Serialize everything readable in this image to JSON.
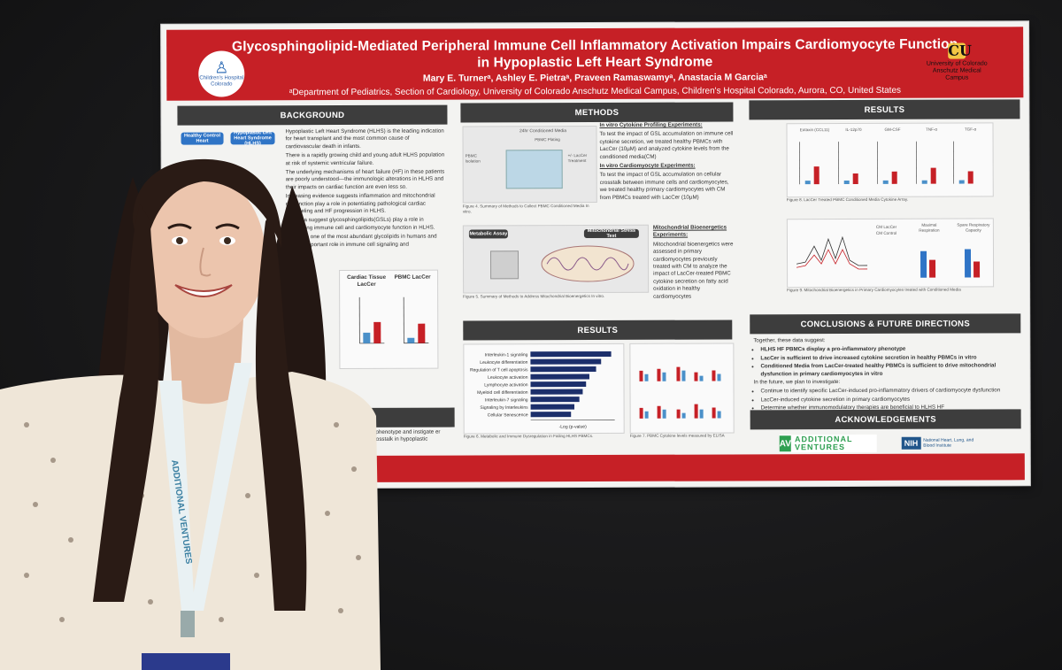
{
  "poster": {
    "title_line1": "Glycosphingolipid-Mediated Peripheral Immune Cell Inflammatory Activation Impairs Cardiomyocyte Function",
    "title_line2": "in Hypoplastic Left Heart Syndrome",
    "authors": "Mary E. Turnerᵃ, Ashley E. Pietraᵃ, Praveen Ramaswamyᵃ, Anastacia M Garciaᵃ",
    "affiliation": "ᵃDepartment of Pediatrics, Section of Cardiology, University of Colorado Anschutz Medical Campus, Children's Hospital Colorado, Aurora, CO, United States",
    "logo_left_text": "Children's Hospital Colorado",
    "logo_right_text": "University of Colorado Anschutz Medical Campus",
    "logo_right_mark": "CU",
    "sections": {
      "background": "BACKGROUND",
      "methods": "METHODS",
      "results": "RESULTS",
      "results2": "RESULTS",
      "conclusions": "CONCLUSIONS & FUTURE DIRECTIONS",
      "acknowledgements": "ACKNOWLEDGEMENTS"
    },
    "background": {
      "pill_healthy": "Healthy Control Heart",
      "pill_hlhs": "Hypoplastic Left Heart Syndrome (HLHS)",
      "bullets": [
        "Hypoplastic Left Heart Syndrome (HLHS) is the leading indication for heart transplant and the most common cause of cardiovascular death in infants.",
        "There is a rapidly growing child and young adult HLHS population at risk of systemic ventricular failure.",
        "The underlying mechanisms of heart failure (HF) in these patients are poorly understood—the immunologic alterations in HLHS and their impacts on cardiac function are even less so.",
        "Increasing evidence suggests inflammation and mitochondrial dysfunction play a role in potentiating pathological cardiac remodeling and HF progression in HLHS.",
        "Our data suggest glycosphingolipids(GSLs) play a role in modulating immune cell and cardiomyocyte function in HLHS.",
        "GSLs are one of the most abundant glycolipids in humans and play an important role in immune cell signaling and"
      ],
      "fig_label_1": "Cardiac Tissue LacCer",
      "fig_label_2": "PBMC LacCer",
      "tail": "y phenotype and instigate er crosstalk in hypoplastic"
    },
    "methods": {
      "fig1_title": "24hr Conditioned Media",
      "fig1_sub": "PBMC Plating",
      "fig1_left": "PBMC Isolation",
      "fig1_right": "+/- LacCer Treatment",
      "cyto_head": "In vitro Cytokine Profiling Experiments:",
      "cyto_text": "To test the impact of GSL accumulation on immune cell cytokine secretion, we treated healthy PBMCs with LacCer (10µM) and analyzed cytokine levels from the conditioned media(CM)",
      "cardio_head": "In vitro Cardiomyocyte Experiments:",
      "cardio_text": "To test the impact of GSL accumulation on cellular crosstalk between immune cells and cardiomyocytes, we treated healthy primary cardiomyocytes with CM from PBMCs treated with LacCer (10µM)",
      "fig_cap1": "Figure 4. Summary of Methods to Collect PBMC Conditioned Media In vitro.",
      "metab_label": "Metabolic Assay",
      "mito_label": "Mitochondrial Stress Test",
      "mito_head": "Mitochondrial Bioenergetics Experiments:",
      "mito_text": "Mitochondrial bioenergetics were assessed in primary cardiomyocytes previously treated with CM to analyze the impact of LacCer-treated PBMC cytokine secretion on fatty acid oxidation in healthy cardiomyocytes",
      "fig_cap2": "Figure 5. Summary of Methods to Address Mitochondrial Bioenergetics In vitro."
    },
    "results_mid": {
      "pathways": [
        {
          "label": "Interleukin-1 signaling",
          "value": 4.8
        },
        {
          "label": "Leukocyte differentiation",
          "value": 4.2
        },
        {
          "label": "Regulation of T cell apoptosis",
          "value": 3.9
        },
        {
          "label": "Leukocyte activation",
          "value": 3.5
        },
        {
          "label": "Lymphocyte activation",
          "value": 3.3
        },
        {
          "label": "Myeloid cell differentiation",
          "value": 3.1
        },
        {
          "label": "Interleukin-7 signaling",
          "value": 2.9
        },
        {
          "label": "Signaling by Interleukins",
          "value": 2.6
        },
        {
          "label": "Cellular Senescence",
          "value": 2.4
        }
      ],
      "axis_label": "-Log (p-value)",
      "fig_cap6": "Figure 6. Metabolic and Immune Dysregulation in Failing HLHS PBMCs.",
      "fig_cap7": "Figure 7. PBMC Cytokine levels measured by ELISA"
    },
    "results_right": {
      "cytokines": [
        "Eotaxin (CCL11)",
        "IL-12p70",
        "GM-CSF",
        "TNF-α",
        "TGF-α"
      ],
      "fig_cap8": "Figure 8. LacCer Treated PBMC Conditioned Media Cytokine Array.",
      "legend_items": [
        "CM LacCer",
        "CM Control"
      ],
      "bar_titles": [
        "Maximal Respiration",
        "Spare Respiratory Capacity"
      ],
      "fig_cap9": "Figure 9. Mitochondrial Bioenergetics in Primary Cardiomyocytes treated with Conditioned Media"
    },
    "conclusions": {
      "intro": "Together, these data suggest:",
      "points": [
        "HLHS HF PBMCs display a pro-inflammatory phenotype",
        "LacCer is sufficient to drive increased cytokine secretion in healthy PBMCs in vitro",
        "Conditioned Media from LacCer-treated healthy PBMCs is sufficient to drive mitochondrial dysfunction in primary cardiomyocytes in vitro"
      ],
      "future_intro": "In the future, we plan to investigate:",
      "future": [
        "Continue to identify specific LacCer-induced pro-inflammatory drivers of cardiomyocyte dysfunction",
        "LacCer-induced cytokine secretion in primary cardiomyocytes",
        "Determine whether immunomodulatory therapies are beneficial to HLHS HF"
      ]
    },
    "acknowledgements": {
      "sponsor1_mark": "AV",
      "sponsor1": "ADDITIONAL VENTURES",
      "sponsor2_mark": "NIH",
      "sponsor2": "National Heart, Lung, and Blood Institute"
    }
  },
  "lanyard_text": "ADDITIONAL VENTURES",
  "colors": {
    "banner_red": "#c62026",
    "section_header": "#3d3d3d",
    "bar_navy": "#1c2f6b",
    "wall": "#1b1b1c"
  }
}
